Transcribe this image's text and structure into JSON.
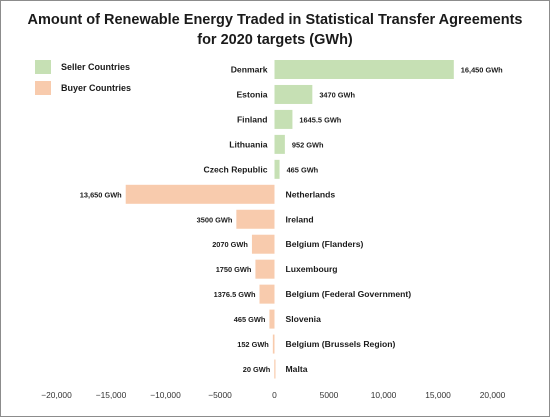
{
  "chart_data": {
    "type": "bar",
    "orientation": "horizontal",
    "title": "Amount of Renewable Energy Traded in Statistical Transfer Agreements for 2020 targets (GWh)",
    "title_lines": [
      "Amount of Renewable Energy Traded in Statistical Transfer Agreements",
      "for 2020 targets (GWh)"
    ],
    "xlabel": "",
    "ylabel": "",
    "xlim": [
      -20000,
      20000
    ],
    "xticks": [
      -20000,
      -15000,
      -10000,
      -5000,
      0,
      5000,
      10000,
      15000,
      20000
    ],
    "xtick_labels": [
      "−20,000",
      "−15,000",
      "−10,000",
      "−5000",
      "0",
      "5000",
      "10,000",
      "15,000",
      "20,000"
    ],
    "grid": false,
    "legend_position": "top-left",
    "series": [
      {
        "name": "Seller Countries",
        "color": "#c6e0b4",
        "items": [
          {
            "category": "Denmark",
            "value": 16450,
            "label": "16,450 GWh"
          },
          {
            "category": "Estonia",
            "value": 3470,
            "label": "3470 GWh"
          },
          {
            "category": "Finland",
            "value": 1645.5,
            "label": "1645.5 GWh"
          },
          {
            "category": "Lithuania",
            "value": 952,
            "label": "952 GWh"
          },
          {
            "category": "Czech Republic",
            "value": 465,
            "label": "465 GWh"
          }
        ]
      },
      {
        "name": "Buyer Countries",
        "color": "#f8cbad",
        "items": [
          {
            "category": "Netherlands",
            "value": -13650,
            "label": "13,650 GWh"
          },
          {
            "category": "Ireland",
            "value": -3500,
            "label": "3500 GWh"
          },
          {
            "category": "Belgium (Flanders)",
            "value": -2070,
            "label": "2070 GWh"
          },
          {
            "category": "Luxembourg",
            "value": -1750,
            "label": "1750 GWh"
          },
          {
            "category": "Belgium (Federal Government)",
            "value": -1376.5,
            "label": "1376.5 GWh"
          },
          {
            "category": "Slovenia",
            "value": -465,
            "label": "465 GWh"
          },
          {
            "category": "Belgium (Brussels Region)",
            "value": -152,
            "label": "152 GWh"
          },
          {
            "category": "Malta",
            "value": -20,
            "label": "20 GWh"
          }
        ]
      }
    ]
  }
}
